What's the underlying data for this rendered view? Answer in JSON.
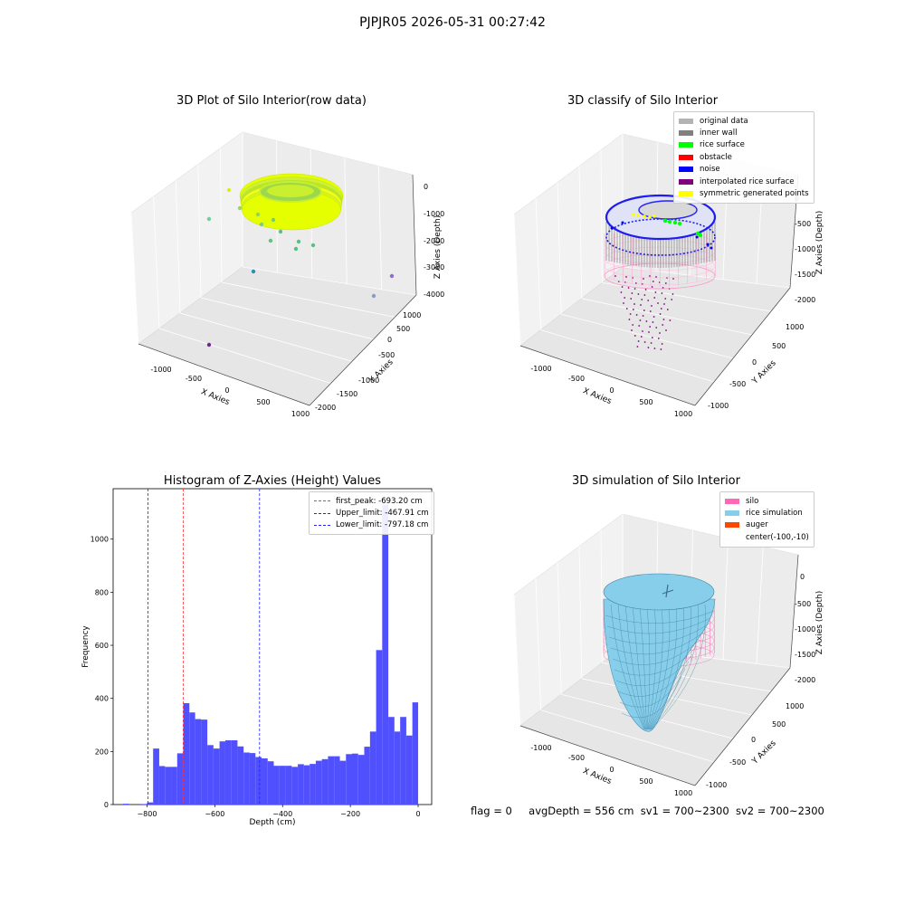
{
  "figure": {
    "suptitle": "PJPJR05 2026-05-31 00:27:42",
    "status": {
      "flag": "flag = 0",
      "avg": "avgDepth = 556 cm",
      "sv1": "sv1 = 700~2300",
      "sv2": "sv2 = 700~2300"
    }
  },
  "colors": {
    "hist_bar": "#5050ff",
    "first_peak": "#ff3333",
    "limit": "#2222ff",
    "original": "#b3b3b3",
    "inner_wall": "#808080",
    "rice_surface": "#00ff00",
    "obstacle": "#ff0000",
    "noise": "#0000ff",
    "interpolated": "#800080",
    "symmetric": "#ffff00",
    "silo": "#ff69b4",
    "rice_sim": "#87ceeb",
    "auger": "#ff4500"
  },
  "chart_data": [
    {
      "type": "scatter",
      "title": "3D Plot of Silo Interior(row data)",
      "xlabel": "X Axies",
      "ylabel": "Y Axies",
      "zlabel": "Z Axies (Depth)",
      "x_ticks": [
        "-1000",
        "-500",
        "0",
        "500",
        "1000"
      ],
      "y_ticks": [
        "-2000",
        "-1500",
        "-1000",
        "-500",
        "0",
        "500",
        "1000"
      ],
      "z_ticks": [
        "0",
        "-1000",
        "-2000",
        "-3000",
        "-4000"
      ]
    },
    {
      "type": "scatter",
      "title": "3D classify of Silo Interior",
      "xlabel": "X Axies",
      "ylabel": "Y Axies",
      "zlabel": "Z Axies (Depth)",
      "x_ticks": [
        "-1000",
        "-500",
        "0",
        "500",
        "1000"
      ],
      "y_ticks": [
        "-1000",
        "-500",
        "0",
        "500",
        "1000"
      ],
      "z_ticks": [
        "0",
        "-500",
        "-1000",
        "-1500",
        "-2000"
      ],
      "legend": [
        "original data",
        "inner wall",
        "rice surface",
        "obstacle",
        "noise",
        "interpolated rice surface",
        "symmetric generated points"
      ],
      "legend_position": "top-right"
    },
    {
      "type": "bar",
      "title": "Histogram of Z-Axies (Height) Values",
      "xlabel": "Depth (cm)",
      "ylabel": "Frequency",
      "xlim": [
        -900,
        40
      ],
      "ylim": [
        0,
        1190
      ],
      "x_ticks": [
        -800,
        -600,
        -400,
        -200,
        0
      ],
      "x_tick_labels": [
        "−800",
        "−600",
        "−400",
        "−200",
        "0"
      ],
      "y_ticks": [
        0,
        200,
        400,
        600,
        800,
        1000
      ],
      "bin_edges": [
        -871,
        -853,
        -835,
        -818,
        -800,
        -782,
        -764,
        -747,
        -729,
        -711,
        -693,
        -675,
        -658,
        -640,
        -622,
        -604,
        -586,
        -569,
        -551,
        -533,
        -515,
        -497,
        -480,
        -462,
        -444,
        -426,
        -409,
        -391,
        -373,
        -355,
        -337,
        -320,
        -302,
        -284,
        -266,
        -248,
        -231,
        -213,
        -195,
        -177,
        -159,
        -142,
        -124,
        -106,
        -88,
        -70,
        -53,
        -35,
        -17,
        0
      ],
      "values": [
        3,
        0,
        0,
        2,
        8,
        211,
        145,
        142,
        142,
        193,
        382,
        347,
        322,
        320,
        224,
        211,
        238,
        242,
        242,
        219,
        196,
        194,
        179,
        174,
        163,
        146,
        146,
        146,
        142,
        152,
        148,
        153,
        165,
        171,
        182,
        182,
        165,
        190,
        192,
        187,
        218,
        275,
        582,
        1130,
        330,
        275,
        330,
        260,
        385
      ],
      "lines": [
        {
          "label": "first_peak: -693.20 cm",
          "x": -693.2,
          "style": "first_peak"
        },
        {
          "label": "Upper_limit: -467.91 cm",
          "x": -467.91,
          "style": "limit"
        },
        {
          "label": "Lower_limit: -797.18 cm",
          "x": -797.18,
          "style": "limit"
        }
      ],
      "legend_position": "top-right"
    },
    {
      "type": "area",
      "title": "3D simulation of Silo Interior",
      "xlabel": "X Axies",
      "ylabel": "Y Axies",
      "zlabel": "Z Axies (Depth)",
      "x_ticks": [
        "-1000",
        "-500",
        "0",
        "500",
        "1000"
      ],
      "y_ticks": [
        "-1000",
        "-500",
        "0",
        "500",
        "1000"
      ],
      "z_ticks": [
        "0",
        "-500",
        "-1000",
        "-1500",
        "-2000"
      ],
      "legend": [
        "silo",
        "rice simulation",
        "auger",
        "center(-100,-10)"
      ],
      "legend_position": "top-right"
    }
  ]
}
